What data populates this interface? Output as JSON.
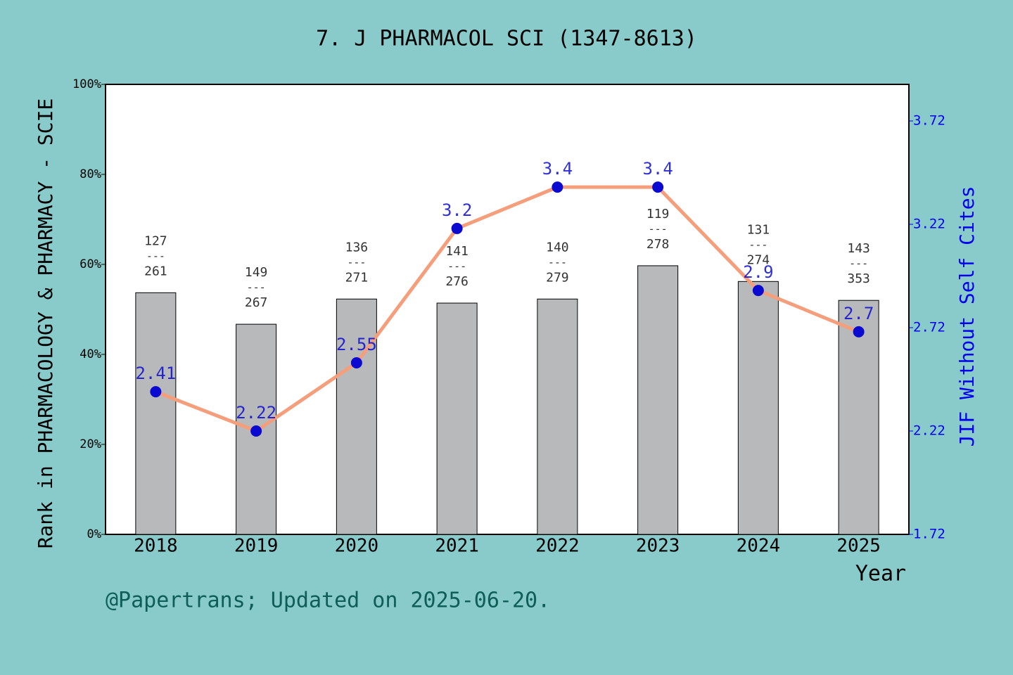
{
  "chart_data": {
    "type": "bar",
    "title": "7. J PHARMACOL SCI (1347-8613)",
    "xlabel": "Year",
    "ylabel": "Rank in PHARMACOLOGY & PHARMACY - SCIE",
    "y2label": "JIF Without Self Cites",
    "footer": "@Papertrans; Updated on 2025-06-20.",
    "categories": [
      "2018",
      "2019",
      "2020",
      "2021",
      "2022",
      "2023",
      "2024",
      "2025"
    ],
    "values": [
      53.7,
      46.7,
      52.3,
      51.4,
      52.3,
      59.7,
      56.2,
      52.0
    ],
    "color": "#b8b9bb",
    "bar_labels": [
      {
        "top": "127",
        "bottom": "261"
      },
      {
        "top": "149",
        "bottom": "267"
      },
      {
        "top": "136",
        "bottom": "271"
      },
      {
        "top": "141",
        "bottom": "276"
      },
      {
        "top": "140",
        "bottom": "279"
      },
      {
        "top": "119",
        "bottom": "278"
      },
      {
        "top": "131",
        "bottom": "274"
      },
      {
        "top": "143",
        "bottom": "353"
      }
    ],
    "bar_label_separator": "---",
    "line": {
      "type": "line",
      "axis": "y2",
      "values": [
        2.41,
        2.22,
        2.55,
        3.2,
        3.4,
        3.4,
        2.9,
        2.7
      ],
      "color": "#f59e7c",
      "marker_color": "#0a0ad0",
      "label_color": "#0a0ad0"
    },
    "ylim": [
      0,
      100
    ],
    "yticks": [
      {
        "value": 0,
        "label": "0%"
      },
      {
        "value": 20,
        "label": "20%"
      },
      {
        "value": 40,
        "label": "40%"
      },
      {
        "value": 60,
        "label": "60%"
      },
      {
        "value": 80,
        "label": "80%"
      },
      {
        "value": 100,
        "label": "100%"
      }
    ],
    "y2lim": [
      1.72,
      3.897
    ],
    "y2ticks": [
      1.72,
      2.22,
      2.72,
      3.22,
      3.72
    ]
  }
}
